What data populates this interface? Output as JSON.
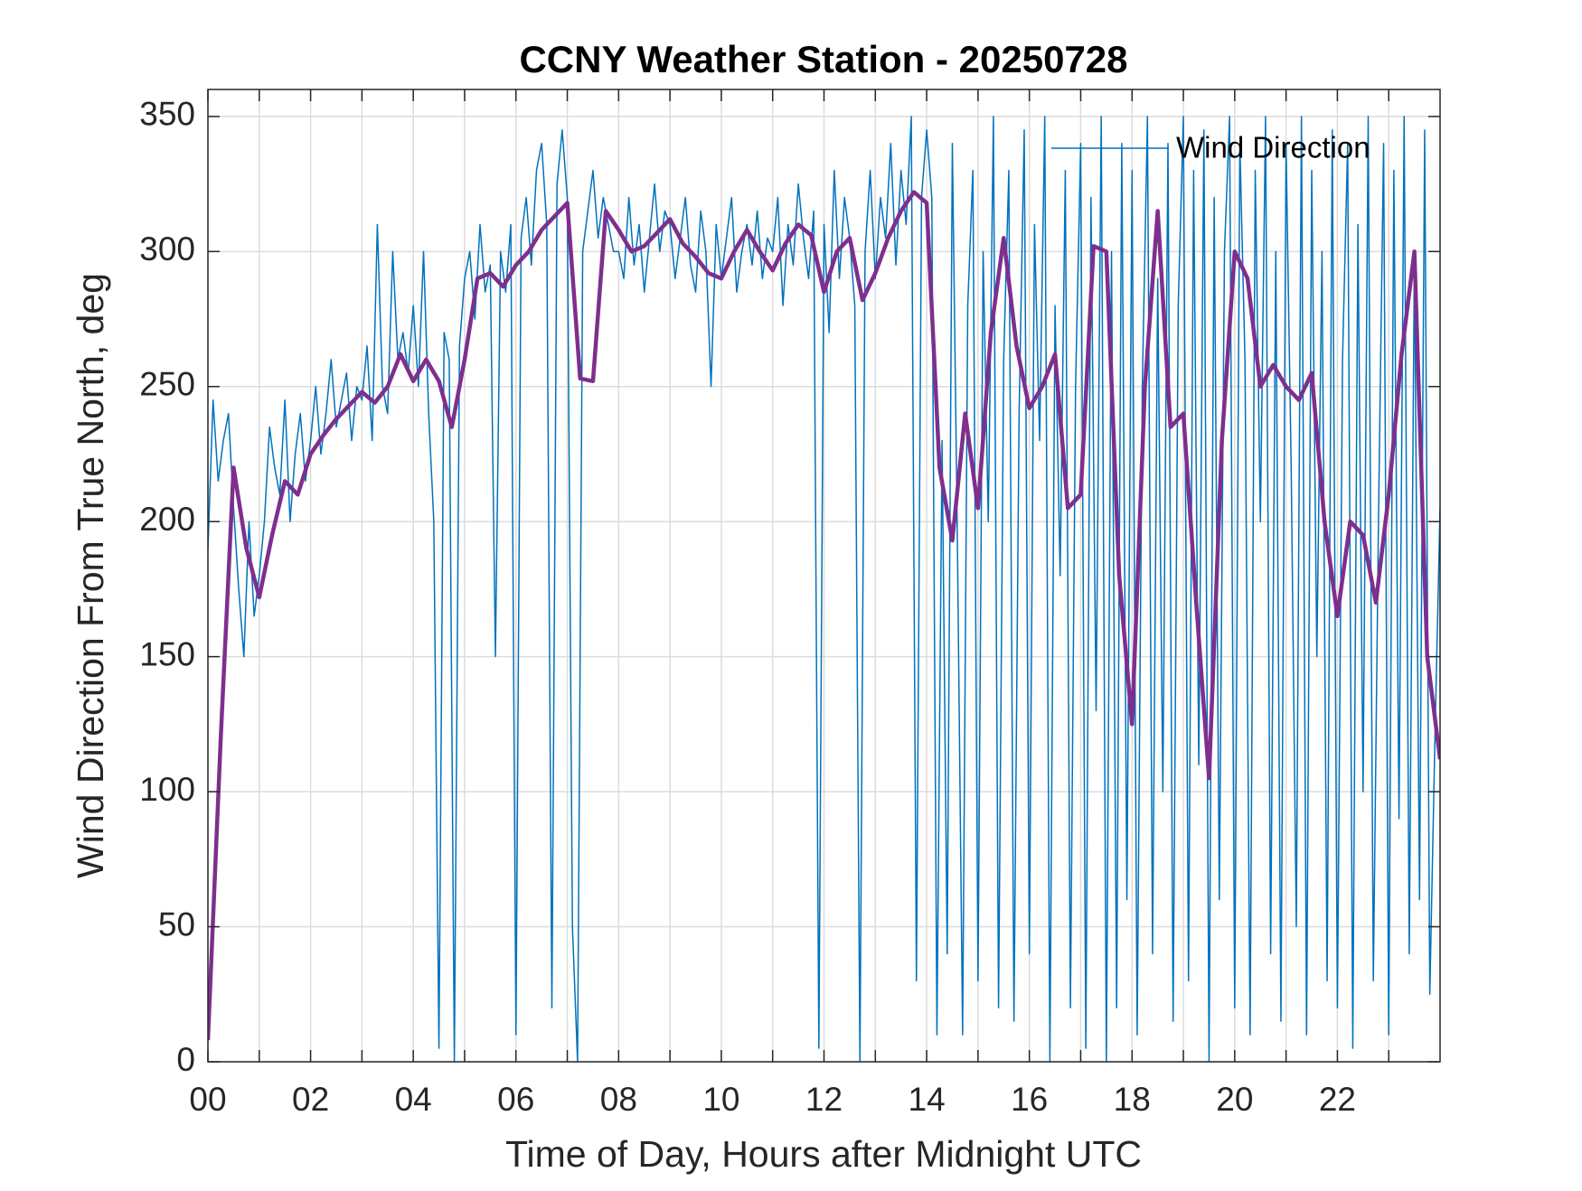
{
  "chart_data": {
    "type": "line",
    "title": "CCNY Weather Station - 20250728",
    "xlabel": "Time of Day, Hours after Midnight UTC",
    "ylabel": "Wind Direction From True North, deg",
    "xlim": [
      0,
      24
    ],
    "ylim": [
      0,
      360
    ],
    "xticks": [
      {
        "value": 0,
        "label": "00"
      },
      {
        "value": 2,
        "label": "02"
      },
      {
        "value": 4,
        "label": "04"
      },
      {
        "value": 6,
        "label": "06"
      },
      {
        "value": 8,
        "label": "08"
      },
      {
        "value": 10,
        "label": "10"
      },
      {
        "value": 12,
        "label": "12"
      },
      {
        "value": 14,
        "label": "14"
      },
      {
        "value": 16,
        "label": "16"
      },
      {
        "value": 18,
        "label": "18"
      },
      {
        "value": 20,
        "label": "20"
      },
      {
        "value": 22,
        "label": "22"
      }
    ],
    "xminorticks": [
      1,
      3,
      5,
      7,
      9,
      11,
      13,
      15,
      17,
      19,
      21,
      23
    ],
    "yticks": [
      0,
      50,
      100,
      150,
      200,
      250,
      300,
      350
    ],
    "grid": true,
    "legend": "northeast",
    "series": [
      {
        "name": "Wind Direction",
        "color": "#0072BD",
        "width": 1.5,
        "x": [
          0,
          0.1,
          0.2,
          0.3,
          0.4,
          0.5,
          0.6,
          0.7,
          0.8,
          0.9,
          1,
          1.1,
          1.2,
          1.3,
          1.4,
          1.5,
          1.6,
          1.7,
          1.8,
          1.9,
          2,
          2.1,
          2.2,
          2.3,
          2.4,
          2.5,
          2.6,
          2.7,
          2.8,
          2.9,
          3,
          3.1,
          3.2,
          3.3,
          3.4,
          3.5,
          3.6,
          3.7,
          3.8,
          3.9,
          4,
          4.1,
          4.2,
          4.3,
          4.4,
          4.5,
          4.6,
          4.7,
          4.8,
          4.9,
          5,
          5.1,
          5.2,
          5.3,
          5.4,
          5.5,
          5.6,
          5.7,
          5.8,
          5.9,
          6,
          6.1,
          6.2,
          6.3,
          6.4,
          6.5,
          6.6,
          6.7,
          6.8,
          6.9,
          7,
          7.1,
          7.2,
          7.3,
          7.4,
          7.5,
          7.6,
          7.7,
          7.8,
          7.9,
          8,
          8.1,
          8.2,
          8.3,
          8.4,
          8.5,
          8.6,
          8.7,
          8.8,
          8.9,
          9,
          9.1,
          9.2,
          9.3,
          9.4,
          9.5,
          9.6,
          9.7,
          9.8,
          9.9,
          10,
          10.1,
          10.2,
          10.3,
          10.4,
          10.5,
          10.6,
          10.7,
          10.8,
          10.9,
          11,
          11.1,
          11.2,
          11.3,
          11.4,
          11.5,
          11.6,
          11.7,
          11.8,
          11.9,
          12,
          12.1,
          12.2,
          12.3,
          12.4,
          12.5,
          12.6,
          12.7,
          12.8,
          12.9,
          13,
          13.1,
          13.2,
          13.3,
          13.4,
          13.5,
          13.6,
          13.7,
          13.8,
          13.9,
          14,
          14.1,
          14.2,
          14.3,
          14.4,
          14.5,
          14.6,
          14.7,
          14.8,
          14.9,
          15,
          15.1,
          15.2,
          15.3,
          15.4,
          15.5,
          15.6,
          15.7,
          15.8,
          15.9,
          16,
          16.1,
          16.2,
          16.3,
          16.4,
          16.5,
          16.6,
          16.7,
          16.8,
          16.9,
          17,
          17.1,
          17.2,
          17.3,
          17.4,
          17.5,
          17.6,
          17.7,
          17.8,
          17.9,
          18,
          18.1,
          18.2,
          18.3,
          18.4,
          18.5,
          18.6,
          18.7,
          18.8,
          18.9,
          19,
          19.1,
          19.2,
          19.3,
          19.4,
          19.5,
          19.6,
          19.7,
          19.8,
          19.9,
          20,
          20.1,
          20.2,
          20.3,
          20.4,
          20.5,
          20.6,
          20.7,
          20.8,
          20.9,
          21,
          21.1,
          21.2,
          21.3,
          21.4,
          21.5,
          21.6,
          21.7,
          21.8,
          21.9,
          22,
          22.1,
          22.2,
          22.3,
          22.4,
          22.5,
          22.6,
          22.7,
          22.8,
          22.9,
          23,
          23.1,
          23.2,
          23.3,
          23.4,
          23.5,
          23.6,
          23.7,
          23.8,
          23.9,
          24
        ],
        "values": [
          190,
          245,
          215,
          230,
          240,
          205,
          175,
          150,
          200,
          165,
          180,
          200,
          235,
          220,
          210,
          245,
          200,
          225,
          240,
          215,
          230,
          250,
          225,
          240,
          260,
          235,
          245,
          255,
          230,
          250,
          245,
          265,
          230,
          310,
          250,
          240,
          300,
          260,
          270,
          255,
          280,
          250,
          300,
          240,
          200,
          5,
          270,
          260,
          0,
          265,
          290,
          300,
          275,
          310,
          285,
          295,
          150,
          300,
          285,
          310,
          10,
          305,
          320,
          295,
          330,
          340,
          310,
          20,
          325,
          345,
          320,
          50,
          0,
          300,
          315,
          330,
          305,
          320,
          310,
          300,
          300,
          290,
          320,
          295,
          310,
          285,
          305,
          325,
          300,
          315,
          310,
          290,
          305,
          320,
          295,
          285,
          315,
          300,
          250,
          310,
          290,
          305,
          320,
          285,
          300,
          310,
          295,
          315,
          290,
          305,
          300,
          320,
          280,
          310,
          295,
          325,
          305,
          290,
          315,
          5,
          310,
          270,
          330,
          290,
          320,
          305,
          280,
          0,
          300,
          330,
          290,
          320,
          305,
          340,
          295,
          330,
          310,
          350,
          30,
          320,
          345,
          320,
          10,
          230,
          40,
          340,
          190,
          10,
          280,
          330,
          30,
          300,
          200,
          350,
          20,
          260,
          330,
          15,
          240,
          345,
          40,
          310,
          230,
          350,
          0,
          280,
          180,
          330,
          20,
          250,
          340,
          5,
          320,
          130,
          350,
          0,
          300,
          20,
          340,
          60,
          330,
          10,
          250,
          350,
          40,
          290,
          100,
          340,
          15,
          280,
          350,
          30,
          330,
          110,
          345,
          0,
          320,
          60,
          300,
          350,
          20,
          340,
          260,
          10,
          330,
          200,
          350,
          40,
          300,
          15,
          340,
          220,
          50,
          350,
          10,
          330,
          150,
          300,
          30,
          345,
          20,
          260,
          340,
          5,
          310,
          100,
          350,
          30,
          200,
          340,
          10,
          330,
          90,
          350,
          40,
          300,
          60,
          345,
          25,
          120,
          205
        ]
      },
      {
        "color": "#7E2F8E",
        "width": 4.5,
        "x": [
          0,
          0.25,
          0.5,
          0.75,
          1,
          1.25,
          1.5,
          1.75,
          2,
          2.25,
          2.5,
          2.75,
          3,
          3.25,
          3.5,
          3.75,
          4,
          4.25,
          4.5,
          4.75,
          5,
          5.25,
          5.5,
          5.75,
          6,
          6.25,
          6.5,
          6.75,
          7,
          7.25,
          7.5,
          7.75,
          8,
          8.25,
          8.5,
          8.75,
          9,
          9.25,
          9.5,
          9.75,
          10,
          10.25,
          10.5,
          10.75,
          11,
          11.25,
          11.5,
          11.75,
          12,
          12.25,
          12.5,
          12.75,
          13,
          13.25,
          13.5,
          13.75,
          14,
          14.25,
          14.5,
          14.75,
          15,
          15.25,
          15.5,
          15.75,
          16,
          16.25,
          16.5,
          16.75,
          17,
          17.25,
          17.5,
          17.75,
          18,
          18.25,
          18.5,
          18.75,
          19,
          19.25,
          19.5,
          19.75,
          20,
          20.25,
          20.5,
          20.75,
          21,
          21.25,
          21.5,
          21.75,
          22,
          22.25,
          22.5,
          22.75,
          23,
          23.25,
          23.5,
          23.75,
          24
        ],
        "values": [
          8,
          120,
          220,
          190,
          172,
          195,
          215,
          210,
          225,
          232,
          238,
          243,
          248,
          244,
          250,
          262,
          252,
          260,
          252,
          235,
          260,
          290,
          292,
          287,
          295,
          300,
          308,
          313,
          318,
          253,
          252,
          315,
          308,
          300,
          302,
          307,
          312,
          303,
          298,
          292,
          290,
          300,
          308,
          300,
          293,
          303,
          310,
          306,
          285,
          300,
          305,
          282,
          292,
          305,
          315,
          322,
          318,
          220,
          193,
          240,
          205,
          270,
          305,
          265,
          242,
          250,
          262,
          205,
          210,
          302,
          300,
          180,
          125,
          250,
          315,
          235,
          240,
          170,
          105,
          230,
          300,
          290,
          250,
          258,
          250,
          245,
          255,
          200,
          165,
          200,
          195,
          170,
          210,
          262,
          300,
          150,
          112
        ]
      }
    ]
  }
}
